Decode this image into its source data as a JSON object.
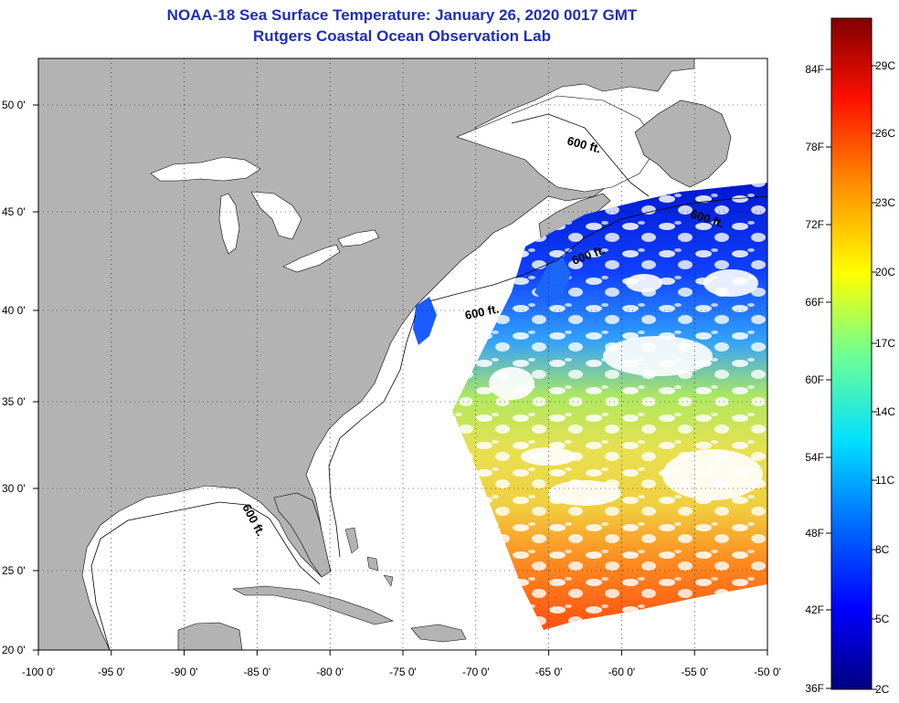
{
  "title": {
    "line1": "NOAA-18 Sea Surface Temperature:  January 26, 2020 0017 GMT",
    "line2": "Rutgers Coastal Ocean Observation Lab"
  },
  "colors": {
    "land": "#b3b3b3",
    "ocean": "#ffffff",
    "title": "#1f2fb3",
    "scale": [
      "#000080",
      "#0000ff",
      "#0080ff",
      "#00ffff",
      "#80ff80",
      "#ffff00",
      "#ff8000",
      "#ff0000",
      "#800000"
    ]
  },
  "axes": {
    "lon_labels": [
      "-100 0'",
      "-95 0'",
      "-90 0'",
      "-85 0'",
      "-80 0'",
      "-75 0'",
      "-70 0'",
      "-65 0'",
      "-60 0'",
      "-55 0'",
      "-50 0'"
    ],
    "lat_labels": [
      "50 0'",
      "45 0'",
      "40 0'",
      "35 0'",
      "30 0'",
      "25 0'",
      "20 0'"
    ]
  },
  "contour_label": "600 ft.",
  "colorbar": {
    "fahrenheit": [
      "84F",
      "78F",
      "72F",
      "66F",
      "60F",
      "54F",
      "48F",
      "42F",
      "36F"
    ],
    "celsius": [
      "29C",
      "26C",
      "23C",
      "20C",
      "17C",
      "14C",
      "11C",
      "8C",
      "5C",
      "2C"
    ]
  }
}
